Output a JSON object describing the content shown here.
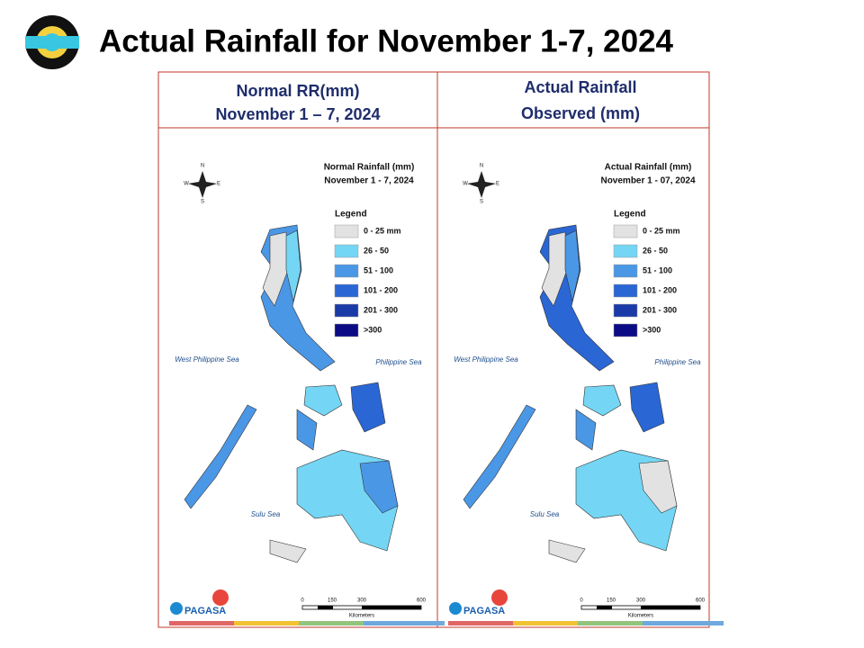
{
  "header": {
    "title": "Actual Rainfall for November 1-7, 2024"
  },
  "panels": [
    {
      "heading": [
        "Normal RR(mm)",
        "November 1 – 7, 2024"
      ],
      "map_title": [
        "Normal Rainfall (mm)",
        "November 1 - 7, 2024"
      ],
      "compass": [
        "N",
        "S",
        "E",
        "W"
      ],
      "legend": {
        "title": "Legend",
        "items": [
          {
            "label": "0 - 25 mm",
            "color": "#e2e2e2"
          },
          {
            "label": "26 - 50",
            "color": "#74d6f4"
          },
          {
            "label": "51 - 100",
            "color": "#4a97e6"
          },
          {
            "label": "101 - 200",
            "color": "#2a66d4"
          },
          {
            "label": "201 - 300",
            "color": "#1a3aa8"
          },
          {
            "label": ">300",
            "color": "#0b0b86"
          }
        ]
      },
      "seas": [
        "West Philippine Sea",
        "Philippine Sea",
        "Sulu Sea"
      ],
      "scale": {
        "ticks": [
          "0",
          "150",
          "300",
          "600"
        ],
        "unit": "Kilometers"
      },
      "logo": "PAGASA"
    },
    {
      "heading": [
        "Actual Rainfall",
        "Observed (mm)"
      ],
      "map_title": [
        "Actual Rainfall (mm)",
        "November 1 - 07, 2024"
      ],
      "compass": [
        "N",
        "S",
        "E",
        "W"
      ],
      "legend": {
        "title": "Legend",
        "items": [
          {
            "label": "0 - 25 mm",
            "color": "#e2e2e2"
          },
          {
            "label": "26 - 50",
            "color": "#74d6f4"
          },
          {
            "label": "51 - 100",
            "color": "#4a97e6"
          },
          {
            "label": "101 - 200",
            "color": "#2a66d4"
          },
          {
            "label": "201 - 300",
            "color": "#1a3aa8"
          },
          {
            "label": ">300",
            "color": "#0b0b86"
          }
        ]
      },
      "seas": [
        "West Philippine Sea",
        "Philippine Sea",
        "Sulu Sea"
      ],
      "scale": {
        "ticks": [
          "0",
          "150",
          "300",
          "600"
        ],
        "unit": "Kilometers"
      },
      "logo": "PAGASA"
    }
  ]
}
